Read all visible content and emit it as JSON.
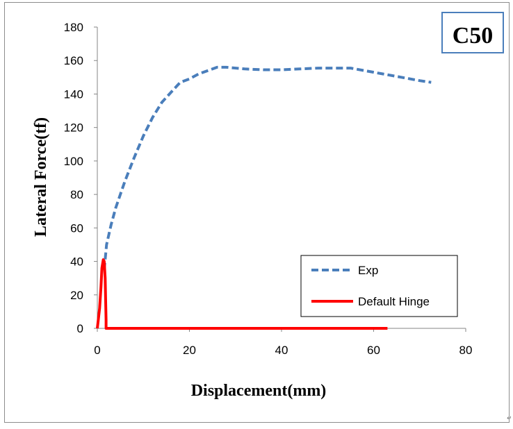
{
  "chart_data": {
    "type": "line",
    "xlabel": "Displacement(mm)",
    "ylabel": "Lateral Force(tf)",
    "xlim": [
      0,
      80
    ],
    "ylim": [
      0,
      180
    ],
    "xticks": [
      0,
      20,
      40,
      60,
      80
    ],
    "yticks": [
      0,
      20,
      40,
      60,
      80,
      100,
      120,
      140,
      160,
      180
    ],
    "grid": false,
    "legend_position": "bottom-right",
    "annotation": "C50",
    "series": [
      {
        "name": "Exp",
        "color": "#4a7ebb",
        "style": "dashed",
        "x": [
          1.5,
          2,
          3,
          4,
          5,
          6,
          8,
          10,
          12,
          14,
          16,
          18,
          20,
          22,
          24,
          26,
          28,
          32,
          36,
          40,
          44,
          48,
          52,
          55,
          58,
          62,
          66,
          70,
          72.5
        ],
        "y": [
          35,
          50,
          62,
          72,
          80,
          88,
          102,
          115,
          126,
          135,
          141,
          147,
          149,
          152,
          154,
          156,
          156,
          155,
          154.5,
          154.5,
          155,
          155.5,
          155.5,
          155.5,
          154,
          152,
          150,
          148,
          147
        ]
      },
      {
        "name": "Default Hinge",
        "color": "#ff0000",
        "style": "solid",
        "x": [
          0,
          0.5,
          0.8,
          1.0,
          1.3,
          1.5,
          1.7,
          1.8,
          1.9,
          1.9,
          2,
          10,
          20,
          30,
          40,
          50,
          60,
          63
        ],
        "y": [
          0,
          12,
          25,
          36,
          41,
          40,
          30,
          18,
          5,
          0,
          0,
          0,
          0,
          0,
          0,
          0,
          0,
          0
        ]
      }
    ]
  },
  "corner_mark": "↵"
}
